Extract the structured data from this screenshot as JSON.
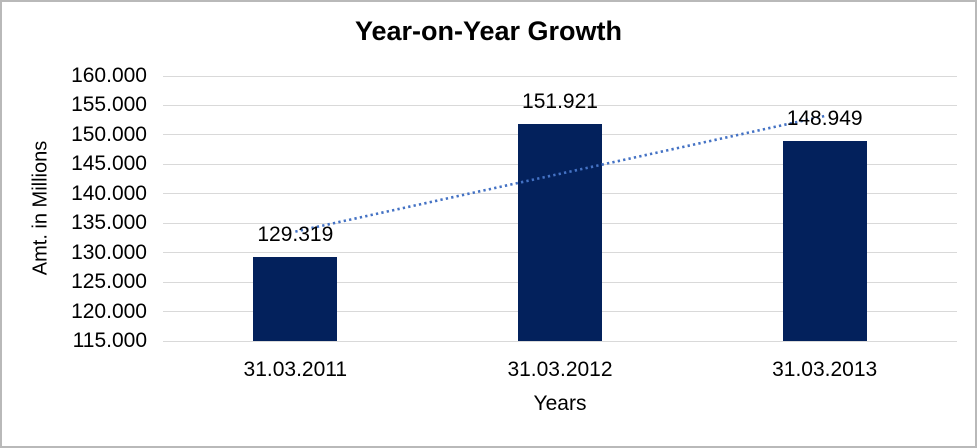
{
  "chart_data": {
    "type": "bar",
    "title": "Year-on-Year Growth",
    "xlabel": "Years",
    "ylabel": "Amt. in Millions",
    "categories": [
      "31.03.2011",
      "31.03.2012",
      "31.03.2013"
    ],
    "values": [
      129.319,
      151.921,
      148.949
    ],
    "data_labels": [
      "129.319",
      "151.921",
      "148.949"
    ],
    "ylim": [
      115,
      160
    ],
    "yticks": [
      115,
      120,
      125,
      130,
      135,
      140,
      145,
      150,
      155,
      160
    ],
    "ytick_labels": [
      "115.000",
      "120.000",
      "125.000",
      "130.000",
      "135.000",
      "140.000",
      "145.000",
      "150.000",
      "155.000",
      "160.000"
    ],
    "grid": true,
    "legend": "none",
    "trendline": {
      "type": "linear",
      "style": "dotted",
      "start_value": 133.58,
      "end_value": 153.21
    },
    "colors": {
      "bar": "#03215C",
      "trendline": "#4472C4",
      "gridline": "#D9D9D9",
      "text": "#000000",
      "frame_border": "#B9B9B9",
      "background": "#FFFFFF"
    }
  }
}
